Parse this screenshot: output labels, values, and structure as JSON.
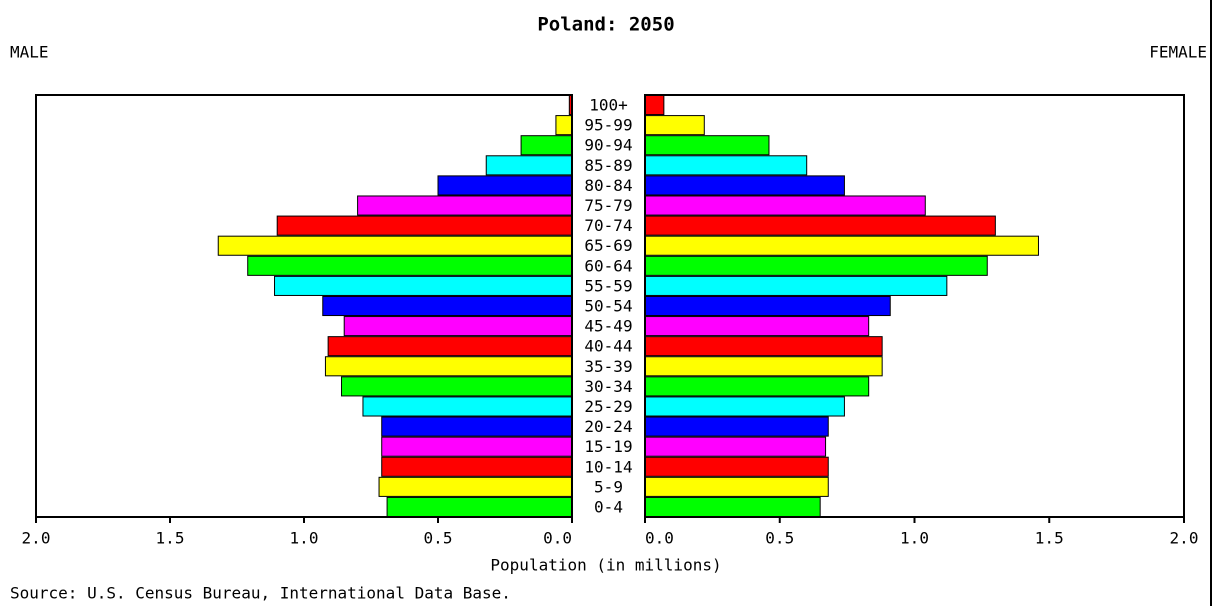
{
  "chart_data": {
    "type": "pyramid",
    "title": "Poland: 2050",
    "categories": [
      "100+",
      "95-99",
      "90-94",
      "85-89",
      "80-84",
      "75-79",
      "70-74",
      "65-69",
      "60-64",
      "55-59",
      "50-54",
      "45-49",
      "40-44",
      "35-39",
      "30-34",
      "25-29",
      "20-24",
      "15-19",
      "10-14",
      "5-9",
      "0-4"
    ],
    "colors": [
      "#ff0000",
      "#ffff00",
      "#00ff00",
      "#00ffff",
      "#0000ff",
      "#ff00ff",
      "#ff0000",
      "#ffff00",
      "#00ff00",
      "#00ffff",
      "#0000ff",
      "#ff00ff",
      "#ff0000",
      "#ffff00",
      "#00ff00",
      "#00ffff",
      "#0000ff",
      "#ff00ff",
      "#ff0000",
      "#ffff00",
      "#00ff00"
    ],
    "series": [
      {
        "name": "MALE",
        "values": [
          0.01,
          0.06,
          0.19,
          0.32,
          0.5,
          0.8,
          1.1,
          1.32,
          1.21,
          1.11,
          0.93,
          0.85,
          0.91,
          0.92,
          0.86,
          0.78,
          0.71,
          0.71,
          0.71,
          0.72,
          0.69
        ]
      },
      {
        "name": "FEMALE",
        "values": [
          0.07,
          0.22,
          0.46,
          0.6,
          0.74,
          1.04,
          1.3,
          1.46,
          1.27,
          1.12,
          0.91,
          0.83,
          0.88,
          0.88,
          0.83,
          0.74,
          0.68,
          0.67,
          0.68,
          0.68,
          0.65
        ]
      }
    ],
    "xlim": [
      0,
      2
    ],
    "xticks": [
      {
        "value": 0,
        "label": "0.0"
      },
      0.5,
      {
        "value": 1,
        "label": "1.0"
      },
      1.5,
      {
        "value": 2,
        "label": "2.0"
      }
    ],
    "xlabel": "Population (in millions)",
    "source": "Source: U.S. Census Bureau, International Data Base."
  }
}
